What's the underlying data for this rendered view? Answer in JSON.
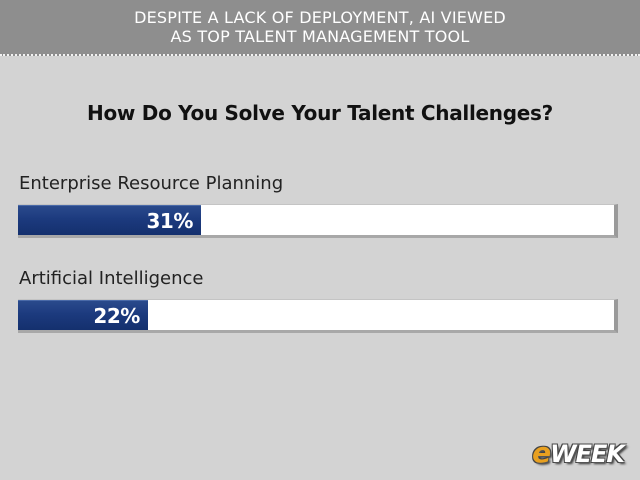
{
  "header": {
    "line1": "DESPITE A LACK OF DEPLOYMENT, AI VIEWED",
    "line2": "AS TOP TALENT MANAGEMENT TOOL"
  },
  "colors": {
    "header_bg": "#8e8e8e",
    "page_bg": "#d3d3d3",
    "bar_fill": "#1c3a7e",
    "bar_track": "#ffffff",
    "logo_accent": "#e8a020"
  },
  "chart_data": {
    "type": "bar",
    "orientation": "horizontal",
    "title": "How Do You Solve Your Talent Challenges?",
    "categories": [
      "Enterprise Resource Planning",
      "Artificial Intelligence"
    ],
    "values": [
      31,
      22
    ],
    "value_labels": [
      "31%",
      "22%"
    ],
    "xlim": [
      0,
      100
    ],
    "unit": "%",
    "grid": false,
    "legend": "none"
  },
  "logo": {
    "accent": "e",
    "rest": "WEEK"
  }
}
